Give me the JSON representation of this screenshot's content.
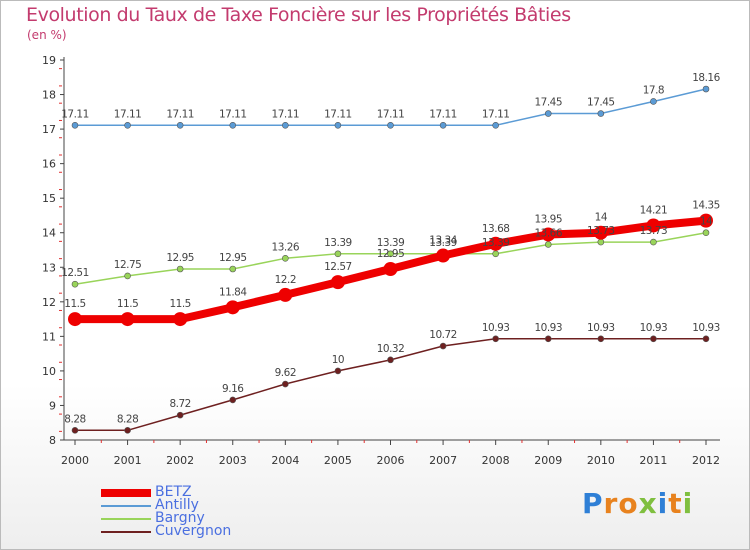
{
  "chart_data": {
    "type": "line",
    "title": "Evolution du Taux de Taxe Foncière sur les Propriétés Bâties",
    "ylabel": "(en %)",
    "xlabel": "",
    "ylim": [
      8,
      19
    ],
    "yticks": [
      8,
      9,
      10,
      11,
      12,
      13,
      14,
      15,
      16,
      17,
      18,
      19
    ],
    "x": [
      "2000",
      "2001",
      "2002",
      "2003",
      "2004",
      "2005",
      "2006",
      "2007",
      "2008",
      "2009",
      "2010",
      "2011",
      "2012"
    ],
    "grid": false,
    "legend_position": "bottom-left",
    "series": [
      {
        "name": "BETZ",
        "color": "#ee0000",
        "values": [
          11.5,
          11.5,
          11.5,
          11.84,
          12.2,
          12.57,
          12.95,
          13.34,
          13.68,
          13.95,
          14,
          14.21,
          14.35
        ],
        "labels": [
          "11.5",
          "11.5",
          "11.5",
          "11.84",
          "12.2",
          "12.57",
          "12.95",
          "13.34",
          "13.68",
          "13.95",
          "14",
          "14.21",
          "14.35"
        ]
      },
      {
        "name": "Antilly",
        "color": "#5b9bd5",
        "values": [
          17.11,
          17.11,
          17.11,
          17.11,
          17.11,
          17.11,
          17.11,
          17.11,
          17.11,
          17.45,
          17.45,
          17.8,
          18.16
        ],
        "labels": [
          "17.11",
          "17.11",
          "17.11",
          "17.11",
          "17.11",
          "17.11",
          "17.11",
          "17.11",
          "17.11",
          "17.45",
          "17.45",
          "17.8",
          "18.16"
        ]
      },
      {
        "name": "Bargny",
        "color": "#99d45a",
        "values": [
          12.51,
          12.75,
          12.95,
          12.95,
          13.26,
          13.39,
          13.39,
          13.39,
          13.39,
          13.66,
          13.73,
          13.73,
          14
        ],
        "labels": [
          "12.51",
          "12.75",
          "12.95",
          "12.95",
          "13.26",
          "13.39",
          "13.39",
          "13.39",
          "13.39",
          "13.66",
          "13.73",
          "13.73",
          "14"
        ]
      },
      {
        "name": "Cuvergnon",
        "color": "#6e2020",
        "values": [
          8.28,
          8.28,
          8.72,
          9.16,
          9.62,
          10,
          10.32,
          10.72,
          10.93,
          10.93,
          10.93,
          10.93,
          10.93
        ],
        "labels": [
          "8.28",
          "8.28",
          "8.72",
          "9.16",
          "9.62",
          "10",
          "10.32",
          "10.72",
          "10.93",
          "10.93",
          "10.93",
          "10.93",
          "10.93"
        ]
      }
    ]
  },
  "logo": {
    "letters": [
      "P",
      "r",
      "o",
      "x",
      "i",
      "t",
      "i"
    ],
    "colors": [
      "#2e7fd6",
      "#e8821e",
      "#e8821e",
      "#7fbf3f",
      "#2e7fd6",
      "#e8821e",
      "#7fbf3f"
    ]
  }
}
